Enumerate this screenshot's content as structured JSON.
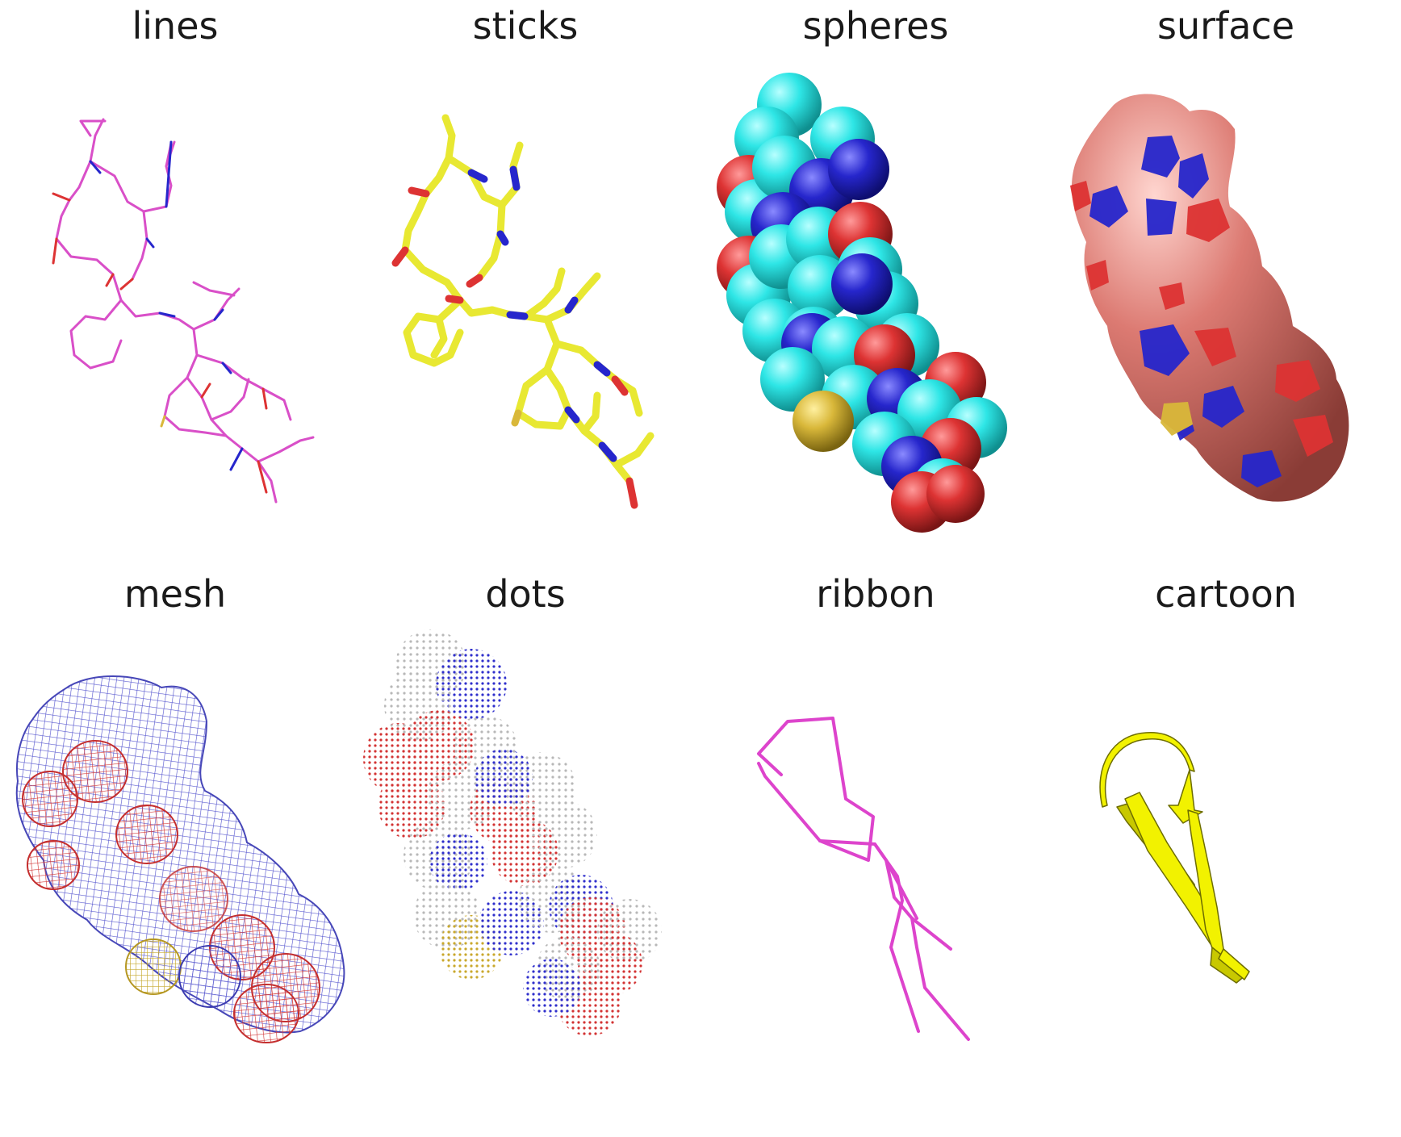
{
  "panels": [
    {
      "id": "lines",
      "label": "lines"
    },
    {
      "id": "sticks",
      "label": "sticks"
    },
    {
      "id": "spheres",
      "label": "spheres"
    },
    {
      "id": "surface",
      "label": "surface"
    },
    {
      "id": "mesh",
      "label": "mesh"
    },
    {
      "id": "dots",
      "label": "dots"
    },
    {
      "id": "ribbon",
      "label": "ribbon"
    },
    {
      "id": "cartoon",
      "label": "cartoon"
    }
  ],
  "colors": {
    "carbon_lines": "#d94fc8",
    "carbon_sticks": "#e8e832",
    "carbon_spheres": "#2ee6e6",
    "surface_base": "#dc7a72",
    "nitrogen": "#2626cc",
    "oxygen": "#dd3333",
    "sulfur": "#d9b83a",
    "mesh_blue": "#5a5ad0",
    "dots_grey": "#b8b8b8",
    "ribbon": "#dd44cc",
    "cartoon": "#f2f200"
  },
  "icons": {
    "lines": "molecule-lines-icon",
    "sticks": "molecule-sticks-icon",
    "spheres": "molecule-spheres-icon",
    "surface": "molecule-surface-icon",
    "mesh": "molecule-mesh-icon",
    "dots": "molecule-dots-icon",
    "ribbon": "molecule-ribbon-icon",
    "cartoon": "molecule-cartoon-icon"
  }
}
